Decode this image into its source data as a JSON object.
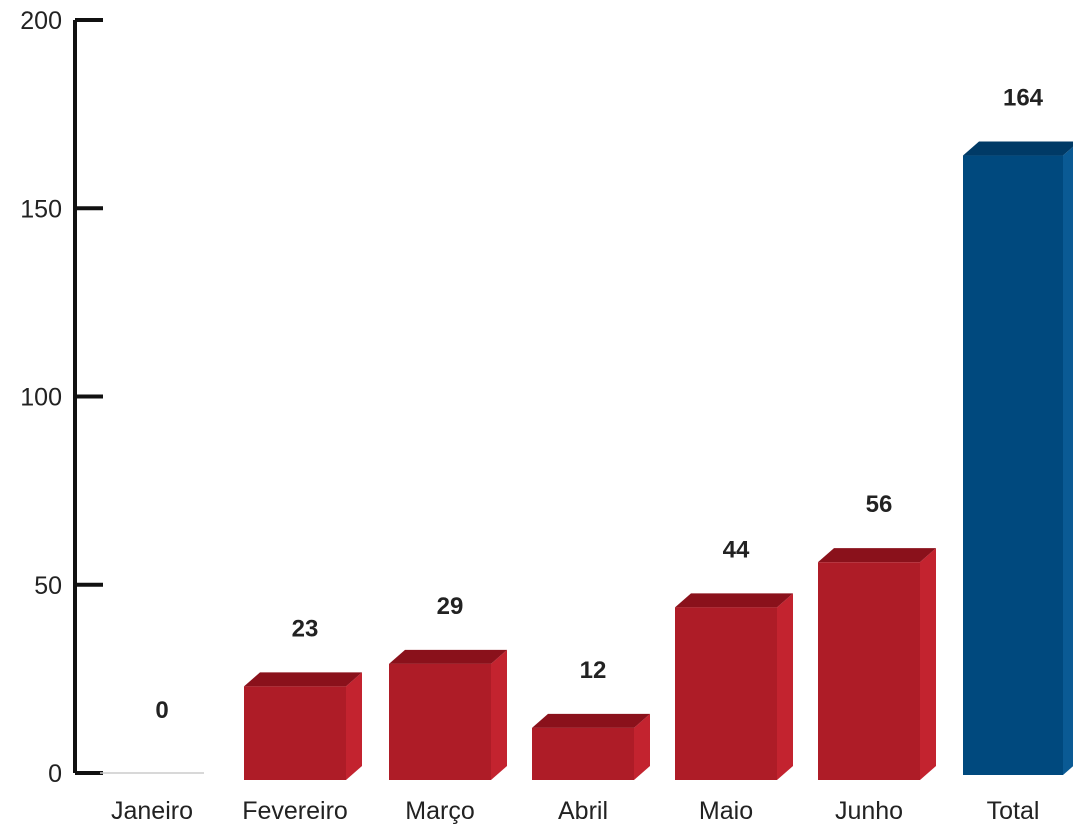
{
  "chart_data": {
    "type": "bar",
    "categories": [
      "Janeiro",
      "Fevereiro",
      "Março",
      "Abril",
      "Maio",
      "Junho",
      "Total"
    ],
    "values": [
      0,
      23,
      29,
      12,
      44,
      56,
      164
    ],
    "title": "",
    "xlabel": "",
    "ylabel": "",
    "ylim": [
      0,
      200
    ],
    "yticks": [
      "0",
      "50",
      "100",
      "150",
      "200"
    ],
    "data_labels": [
      "0",
      "23",
      "29",
      "12",
      "44",
      "56",
      "164"
    ],
    "grid": false,
    "style": "3d",
    "colors": {
      "month_bar": "#ae1c27",
      "month_bar_top": "#8a111b",
      "month_bar_side": "#c3232f",
      "total_bar": "#00497e",
      "total_bar_top": "#003a66",
      "total_bar_side": "#0a5a94",
      "axis": "#111111"
    }
  }
}
